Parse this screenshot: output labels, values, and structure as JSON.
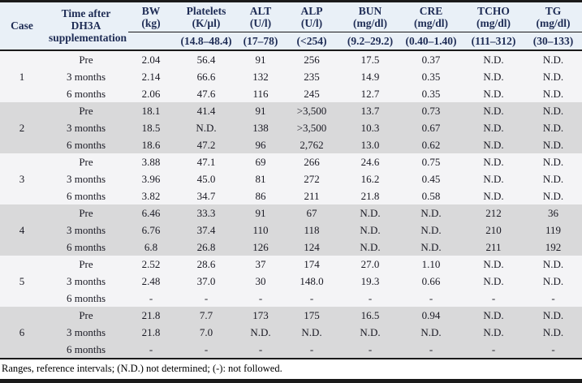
{
  "colors": {
    "header_bg": "#e9f0f7",
    "block_light_bg": "#f4f4f6",
    "block_dark_bg": "#d9d9da",
    "header_text": "#1e2c55",
    "body_text": "#1a1a24",
    "rule": "#1a1a1a"
  },
  "footnote": "Ranges, reference intervals; (N.D.) not determined; (-): not followed.",
  "table": {
    "case_header": "Case",
    "time_header": "Time after DH3A supplementation",
    "metrics": [
      {
        "name": "BW",
        "unit": "(kg)",
        "range": ""
      },
      {
        "name": "Platelets",
        "unit": "(K/µl)",
        "range": "(14.8–48.4)"
      },
      {
        "name": "ALT",
        "unit": "(U/l)",
        "range": "(17–78)"
      },
      {
        "name": "ALP",
        "unit": "(U/l)",
        "range": "(<254)"
      },
      {
        "name": "BUN",
        "unit": "(mg/dl)",
        "range": "(9.2–29.2)"
      },
      {
        "name": "CRE",
        "unit": "(mg/dl)",
        "range": "(0.40–1.40)"
      },
      {
        "name": "TCHO",
        "unit": "(mg/dl)",
        "range": "(111–312)"
      },
      {
        "name": "TG",
        "unit": "(mg/dl)",
        "range": "(30–133)"
      }
    ],
    "cases": [
      {
        "case": "1",
        "rows": [
          {
            "time": "Pre",
            "values": [
              "2.04",
              "56.4",
              "91",
              "256",
              "17.5",
              "0.37",
              "N.D.",
              "N.D."
            ]
          },
          {
            "time": "3 months",
            "values": [
              "2.14",
              "66.6",
              "132",
              "235",
              "14.9",
              "0.35",
              "N.D.",
              "N.D."
            ]
          },
          {
            "time": "6 months",
            "values": [
              "2.06",
              "47.6",
              "116",
              "245",
              "12.7",
              "0.35",
              "N.D.",
              "N.D."
            ]
          }
        ]
      },
      {
        "case": "2",
        "rows": [
          {
            "time": "Pre",
            "values": [
              "18.1",
              "41.4",
              "91",
              ">3,500",
              "13.7",
              "0.73",
              "N.D.",
              "N.D."
            ]
          },
          {
            "time": "3 months",
            "values": [
              "18.5",
              "N.D.",
              "138",
              ">3,500",
              "10.3",
              "0.67",
              "N.D.",
              "N.D."
            ]
          },
          {
            "time": "6 months",
            "values": [
              "18.6",
              "47.2",
              "96",
              "2,762",
              "13.0",
              "0.62",
              "N.D.",
              "N.D."
            ]
          }
        ]
      },
      {
        "case": "3",
        "rows": [
          {
            "time": "Pre",
            "values": [
              "3.88",
              "47.1",
              "69",
              "266",
              "24.6",
              "0.75",
              "N.D.",
              "N.D."
            ]
          },
          {
            "time": "3 months",
            "values": [
              "3.96",
              "45.0",
              "81",
              "272",
              "16.2",
              "0.45",
              "N.D.",
              "N.D."
            ]
          },
          {
            "time": "6 months",
            "values": [
              "3.82",
              "34.7",
              "86",
              "211",
              "21.8",
              "0.58",
              "N.D.",
              "N.D."
            ]
          }
        ]
      },
      {
        "case": "4",
        "rows": [
          {
            "time": "Pre",
            "values": [
              "6.46",
              "33.3",
              "91",
              "67",
              "N.D.",
              "N.D.",
              "212",
              "36"
            ]
          },
          {
            "time": "3 months",
            "values": [
              "6.76",
              "37.4",
              "110",
              "118",
              "N.D.",
              "N.D.",
              "210",
              "119"
            ]
          },
          {
            "time": "6 months",
            "values": [
              "6.8",
              "26.8",
              "126",
              "124",
              "N.D.",
              "N.D.",
              "211",
              "192"
            ]
          }
        ]
      },
      {
        "case": "5",
        "rows": [
          {
            "time": "Pre",
            "values": [
              "2.52",
              "28.6",
              "37",
              "174",
              "27.0",
              "1.10",
              "N.D.",
              "N.D."
            ]
          },
          {
            "time": "3 months",
            "values": [
              "2.48",
              "37.0",
              "30",
              "148.0",
              "19.3",
              "0.66",
              "N.D.",
              "N.D."
            ]
          },
          {
            "time": "6 months",
            "values": [
              "-",
              "-",
              "-",
              "-",
              "-",
              "-",
              "-",
              "-"
            ]
          }
        ]
      },
      {
        "case": "6",
        "rows": [
          {
            "time": "Pre",
            "values": [
              "21.8",
              "7.7",
              "173",
              "175",
              "16.5",
              "0.94",
              "N.D.",
              "N.D."
            ]
          },
          {
            "time": "3 months",
            "values": [
              "21.8",
              "7.0",
              "N.D.",
              "N.D.",
              "N.D.",
              "N.D.",
              "N.D.",
              "N.D."
            ]
          },
          {
            "time": "6 months",
            "values": [
              "-",
              "-",
              "-",
              "-",
              "-",
              "-",
              "-",
              "-"
            ]
          }
        ]
      }
    ]
  }
}
